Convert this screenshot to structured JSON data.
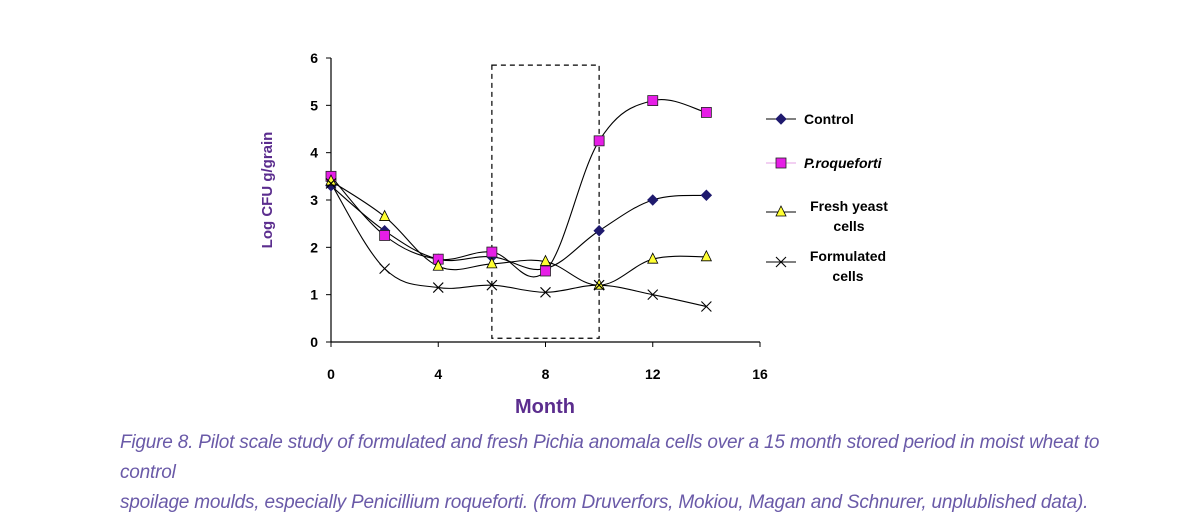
{
  "chart_data": {
    "type": "line",
    "title": "",
    "xlabel": "Month",
    "ylabel": "Log CFU g/grain",
    "xlim": [
      0,
      16
    ],
    "ylim": [
      0,
      6
    ],
    "x_ticks": [
      "0",
      "4",
      "8",
      "12",
      "16"
    ],
    "y_ticks": [
      "0",
      "1",
      "2",
      "3",
      "4",
      "5",
      "6"
    ],
    "grid": false,
    "legend_position": "right",
    "highlight_box": {
      "x_range": [
        6,
        10
      ],
      "y_range": [
        0.08,
        5.85
      ],
      "style": "dashed"
    },
    "series": [
      {
        "name": "Control",
        "marker": "diamond",
        "color": "#1f1a6e",
        "x": [
          0,
          2,
          4,
          6,
          8,
          10,
          12,
          14
        ],
        "y": [
          3.3,
          2.35,
          1.75,
          1.8,
          1.55,
          2.35,
          3.0,
          3.1
        ]
      },
      {
        "name": "P.roqueforti",
        "marker": "square",
        "color": "#e61ee6",
        "x": [
          0,
          2,
          4,
          6,
          8,
          10,
          12,
          14
        ],
        "y": [
          3.5,
          2.25,
          1.75,
          1.9,
          1.5,
          4.25,
          5.1,
          4.85
        ]
      },
      {
        "name": "Fresh yeast cells",
        "marker": "triangle",
        "color": "#ffff33",
        "x": [
          0,
          2,
          4,
          6,
          8,
          10,
          12,
          14
        ],
        "y": [
          3.4,
          2.65,
          1.6,
          1.65,
          1.7,
          1.2,
          1.75,
          1.8
        ]
      },
      {
        "name": "Formulated cells",
        "marker": "x",
        "color": "#000000",
        "x": [
          0,
          2,
          4,
          6,
          8,
          10,
          12,
          14
        ],
        "y": [
          3.35,
          1.55,
          1.15,
          1.2,
          1.05,
          1.2,
          1.0,
          0.75
        ]
      }
    ],
    "legend": {
      "control": "Control",
      "proqueforti": "P.roqueforti",
      "fresh_line1": "Fresh yeast",
      "fresh_line2": "cells",
      "formulated_line1": "Formulated",
      "formulated_line2": "cells"
    }
  },
  "caption": {
    "line1": "Figure 8. Pilot scale study of formulated and fresh Pichia anomala cells over a 15 month stored period in moist wheat to control",
    "line2": "spoilage moulds, especially Penicillium roqueforti. (from Druverfors, Mokiou, Magan and Schnurer, unplublished data)."
  }
}
